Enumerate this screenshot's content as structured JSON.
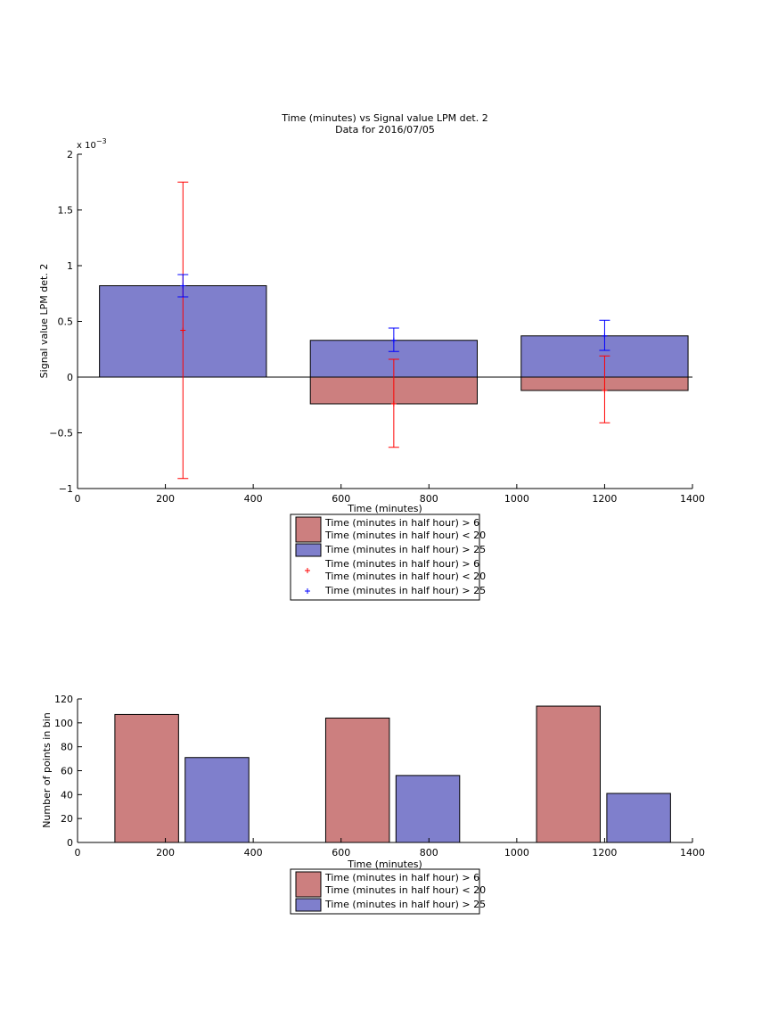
{
  "chart_data": [
    {
      "type": "bar",
      "title": "Time (minutes) vs Signal value LPM det. 2",
      "subtitle": "Data for 2016/07/05",
      "xlabel": "Time (minutes)",
      "ylabel": "Signal value LPM det. 2",
      "y_exponent_label": "x 10",
      "y_exponent_power": "−3",
      "xlim": [
        0,
        1400
      ],
      "ylim": [
        -1,
        2
      ],
      "xticks": [
        0,
        200,
        400,
        600,
        800,
        1000,
        1200,
        1400
      ],
      "yticks": [
        -1,
        -0.5,
        0,
        0.5,
        1,
        1.5,
        2
      ],
      "ytick_labels": [
        "−1",
        "−0.5",
        "0",
        "0.5",
        "1",
        "1.5",
        "2"
      ],
      "grid": false,
      "legend_position": "below",
      "bars": [
        {
          "x0": 50,
          "x1": 430,
          "pos": 0.82,
          "neg": 0.0
        },
        {
          "x0": 530,
          "x1": 910,
          "pos": 0.33,
          "neg": -0.24
        },
        {
          "x0": 1010,
          "x1": 1390,
          "pos": 0.37,
          "neg": -0.12
        }
      ],
      "series": [
        {
          "name": "Time (minutes in half hour) > 6\nTime (minutes in half hour) < 20",
          "kind": "bar",
          "color": "#cc7f7f"
        },
        {
          "name": "Time (minutes in half hour) > 25",
          "kind": "bar",
          "color": "#7f7fcc"
        },
        {
          "name": "Time (minutes in half hour) > 6\nTime (minutes in half hour) < 20",
          "kind": "errorbar",
          "color": "#ff0000",
          "x": [
            240,
            720,
            1200
          ],
          "y": [
            0.42,
            -0.24,
            -0.12
          ],
          "low": [
            -0.91,
            -0.63,
            -0.41
          ],
          "high": [
            1.75,
            0.16,
            0.19
          ]
        },
        {
          "name": "Time (minutes in half hour) > 25",
          "kind": "errorbar",
          "color": "#0000ff",
          "x": [
            240,
            720,
            1200
          ],
          "y": [
            0.82,
            0.33,
            0.37
          ],
          "low": [
            0.72,
            0.23,
            0.24
          ],
          "high": [
            0.92,
            0.44,
            0.51
          ]
        }
      ]
    },
    {
      "type": "bar",
      "xlabel": "Time (minutes)",
      "ylabel": "Number of points in bin",
      "xlim": [
        0,
        1400
      ],
      "ylim": [
        0,
        120
      ],
      "xticks": [
        0,
        200,
        400,
        600,
        800,
        1000,
        1200,
        1400
      ],
      "yticks": [
        0,
        20,
        40,
        60,
        80,
        100,
        120
      ],
      "grid": false,
      "legend_position": "below",
      "series": [
        {
          "name": "Time (minutes in half hour) > 6\nTime (minutes in half hour) < 20",
          "color": "#cc7f7f",
          "bars": [
            {
              "x0": 85,
              "x1": 230,
              "value": 107
            },
            {
              "x0": 565,
              "x1": 710,
              "value": 104
            },
            {
              "x0": 1045,
              "x1": 1190,
              "value": 114
            }
          ]
        },
        {
          "name": "Time (minutes in half hour) > 25",
          "color": "#7f7fcc",
          "bars": [
            {
              "x0": 245,
              "x1": 390,
              "value": 71
            },
            {
              "x0": 725,
              "x1": 870,
              "value": 56
            },
            {
              "x0": 1205,
              "x1": 1350,
              "value": 41
            }
          ]
        }
      ]
    }
  ]
}
